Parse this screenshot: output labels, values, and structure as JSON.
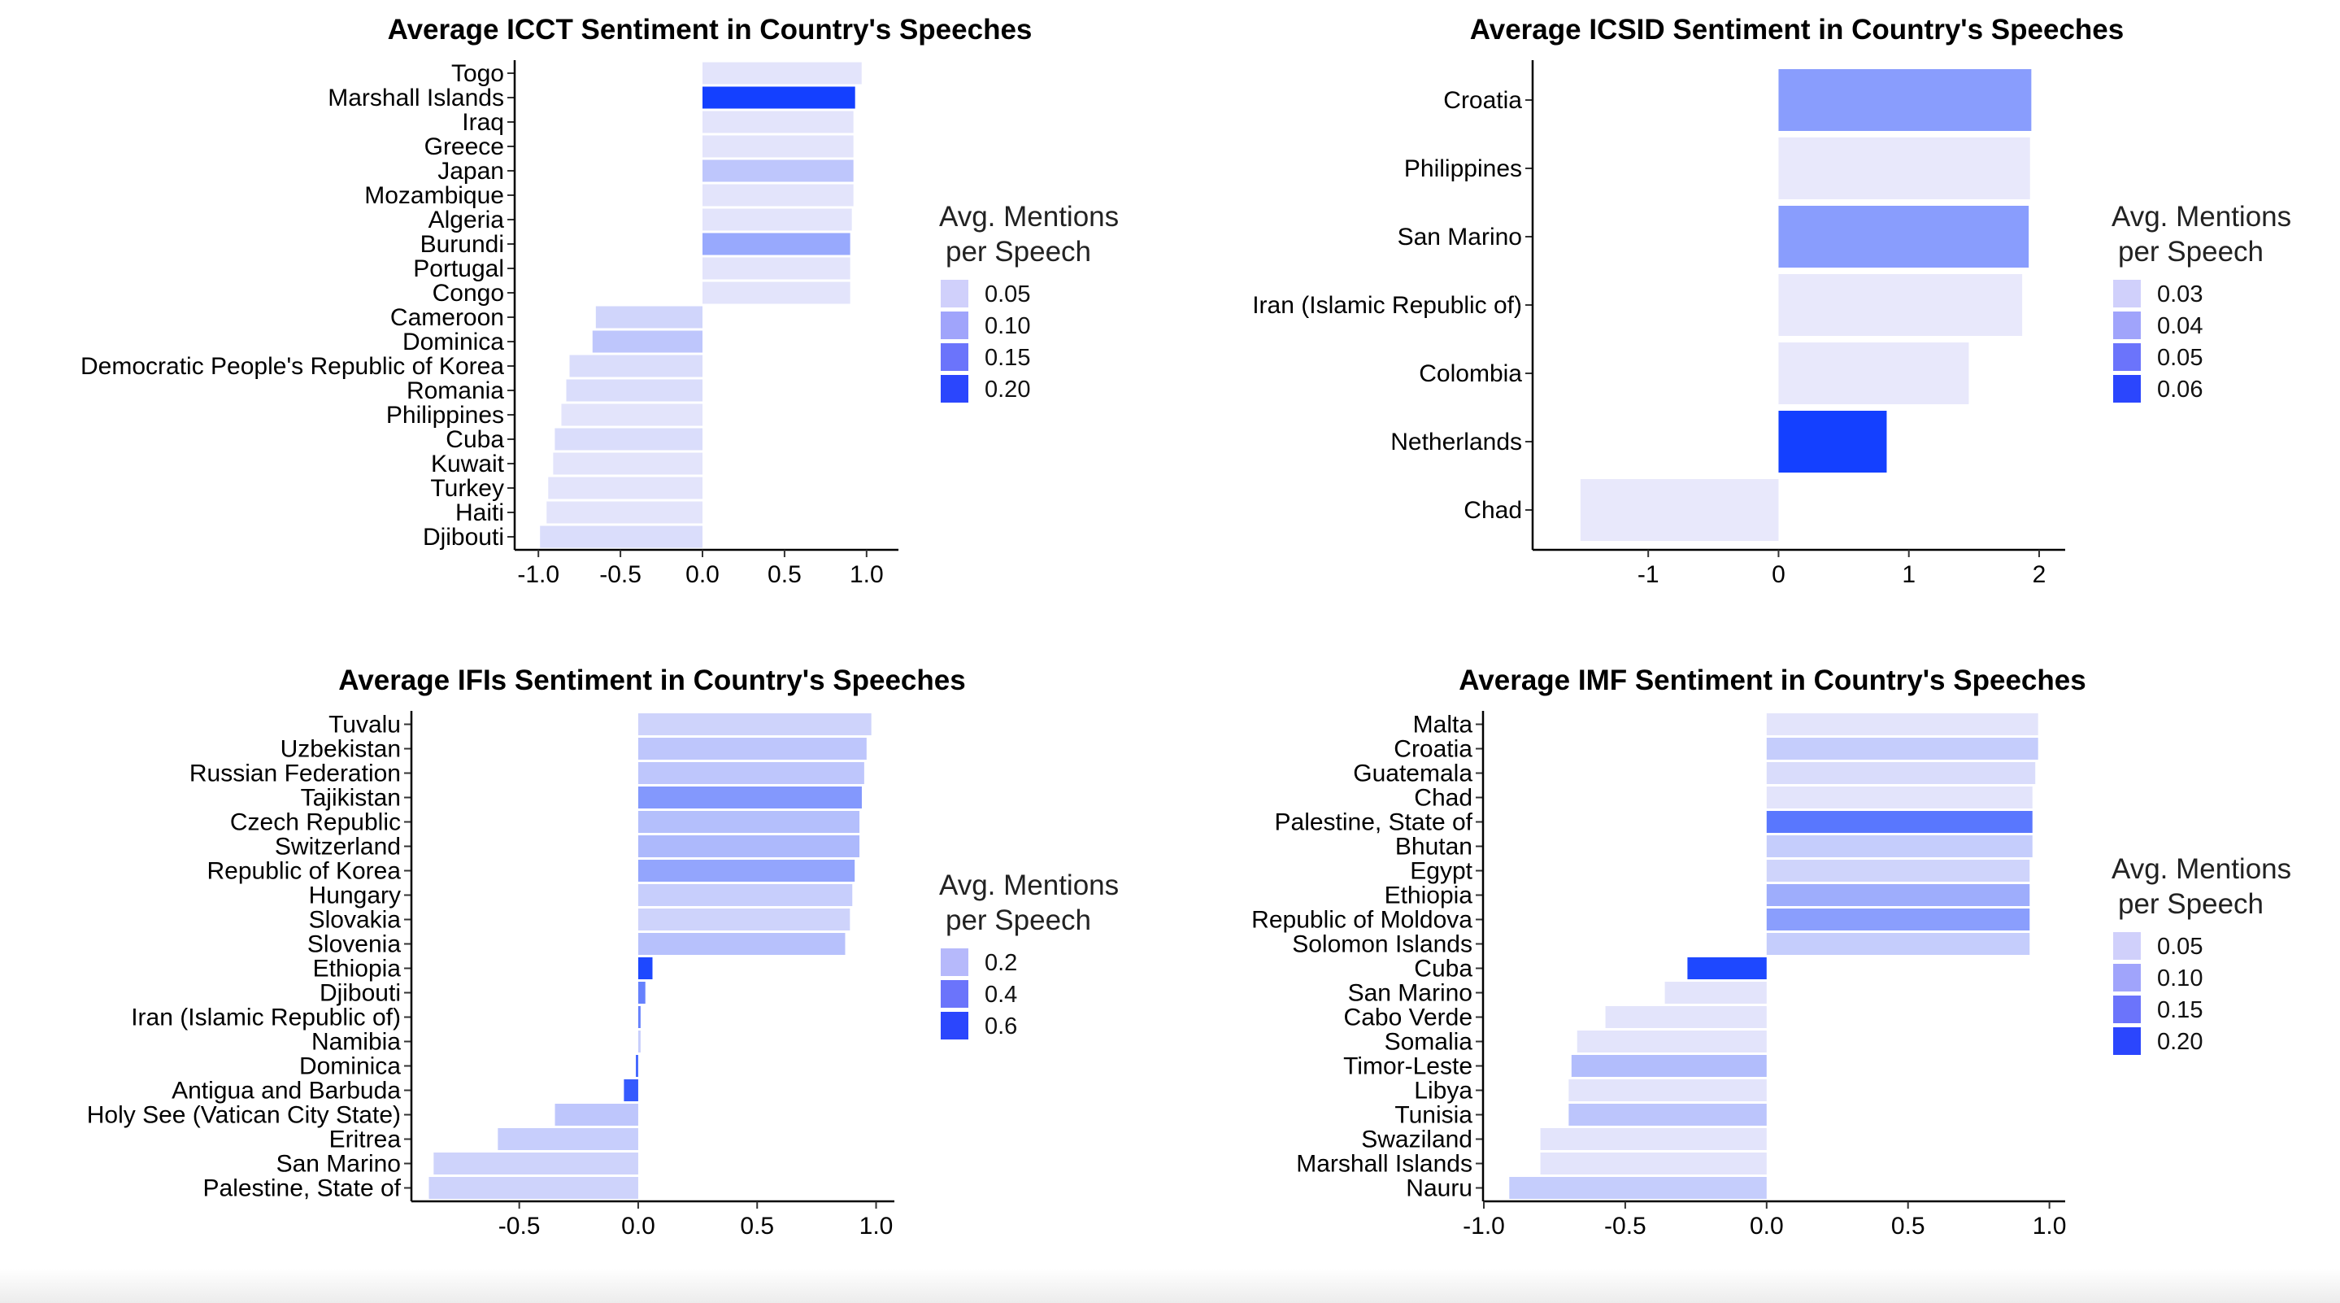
{
  "chart_data": [
    {
      "type": "bar",
      "orientation": "horizontal",
      "title": "Average ICCT Sentiment in Country's Speeches",
      "xlabel": "",
      "ylabel": "",
      "xlim": [
        -1.1,
        1.1
      ],
      "xticks": [
        -1.0,
        -0.5,
        0.0,
        0.5,
        1.0
      ],
      "xtick_labels": [
        "-1.0",
        "-0.5",
        "0.0",
        "0.5",
        "1.0"
      ],
      "grid": false,
      "categories": [
        "Togo",
        "Marshall Islands",
        "Iraq",
        "Greece",
        "Japan",
        "Mozambique",
        "Algeria",
        "Burundi",
        "Portugal",
        "Congo",
        "Cameroon",
        "Dominica",
        "Democratic People's Republic of Korea",
        "Romania",
        "Philippines",
        "Cuba",
        "Kuwait",
        "Turkey",
        "Haiti",
        "Djibouti"
      ],
      "values": [
        0.97,
        0.93,
        0.92,
        0.92,
        0.92,
        0.92,
        0.91,
        0.9,
        0.9,
        0.9,
        -0.65,
        -0.67,
        -0.81,
        -0.83,
        -0.86,
        -0.9,
        -0.91,
        -0.94,
        -0.95,
        -0.99
      ],
      "mentions": [
        0.03,
        0.25,
        0.03,
        0.03,
        0.07,
        0.03,
        0.03,
        0.11,
        0.03,
        0.03,
        0.05,
        0.07,
        0.04,
        0.04,
        0.03,
        0.04,
        0.03,
        0.03,
        0.03,
        0.04
      ],
      "legend": {
        "title": [
          "Avg. Mentions",
          "per Speech"
        ],
        "position": "right",
        "entries": [
          "0.05",
          "0.10",
          "0.15",
          "0.20"
        ],
        "colors": [
          "#d0d0fb",
          "#a0a4fb",
          "#6b74fb",
          "#2b46fd"
        ]
      }
    },
    {
      "type": "bar",
      "orientation": "horizontal",
      "title": "Average ICSID Sentiment in Country's Speeches",
      "xlabel": "",
      "ylabel": "",
      "xlim": [
        -1.7,
        2.1
      ],
      "xticks": [
        -1,
        0,
        1,
        2
      ],
      "xtick_labels": [
        "-1",
        "0",
        "1",
        "2"
      ],
      "grid": false,
      "categories": [
        "Croatia",
        "Philippines",
        "San Marino",
        "Iran (Islamic Republic of)",
        "Colombia",
        "Netherlands",
        "Chad"
      ],
      "values": [
        1.94,
        1.93,
        1.92,
        1.87,
        1.46,
        0.83,
        -1.52
      ],
      "mentions": [
        0.042,
        0.025,
        0.042,
        0.025,
        0.025,
        0.063,
        0.025
      ],
      "legend": {
        "title": [
          "Avg. Mentions",
          "per Speech"
        ],
        "position": "right",
        "entries": [
          "0.03",
          "0.04",
          "0.05",
          "0.06"
        ],
        "colors": [
          "#d0d0fb",
          "#a0a4fb",
          "#6b74fb",
          "#2b46fd"
        ]
      }
    },
    {
      "type": "bar",
      "orientation": "horizontal",
      "title": "Average IFIs Sentiment in Country's Speeches",
      "xlabel": "",
      "ylabel": "",
      "xlim": [
        -0.95,
        1.07
      ],
      "xticks": [
        -0.5,
        0.0,
        0.5,
        1.0
      ],
      "xtick_labels": [
        "-0.5",
        "0.0",
        "0.5",
        "1.0"
      ],
      "grid": false,
      "categories": [
        "Tuvalu",
        "Uzbekistan",
        "Russian Federation",
        "Tajikistan",
        "Czech Republic",
        "Switzerland",
        "Republic of Korea",
        "Hungary",
        "Slovakia",
        "Slovenia",
        "Ethiopia",
        "Djibouti",
        "Iran (Islamic Republic of)",
        "Namibia",
        "Dominica",
        "Antigua and Barbuda",
        "Holy See (Vatican City State)",
        "Eritrea",
        "San Marino",
        "Palestine, State of"
      ],
      "values": [
        0.98,
        0.96,
        0.95,
        0.94,
        0.93,
        0.93,
        0.91,
        0.9,
        0.89,
        0.87,
        0.06,
        0.03,
        0.01,
        0.01,
        -0.01,
        -0.06,
        -0.35,
        -0.59,
        -0.86,
        -0.88
      ],
      "mentions": [
        0.08,
        0.13,
        0.13,
        0.31,
        0.16,
        0.18,
        0.26,
        0.1,
        0.08,
        0.15,
        0.62,
        0.4,
        0.4,
        0.1,
        0.5,
        0.55,
        0.13,
        0.1,
        0.08,
        0.08
      ],
      "legend": {
        "title": [
          "Avg. Mentions",
          "per Speech"
        ],
        "position": "right",
        "entries": [
          "0.2",
          "0.4",
          "0.6"
        ],
        "colors": [
          "#b6b9fb",
          "#6b74fb",
          "#2b46fd"
        ]
      }
    },
    {
      "type": "bar",
      "orientation": "horizontal",
      "title": "Average IMF Sentiment in Country's Speeches",
      "xlabel": "",
      "ylabel": "",
      "xlim": [
        -1.0,
        1.05
      ],
      "xticks": [
        -1.0,
        -0.5,
        0.0,
        0.5,
        1.0
      ],
      "xtick_labels": [
        "-1.0",
        "-0.5",
        "0.0",
        "0.5",
        "1.0"
      ],
      "grid": false,
      "categories": [
        "Malta",
        "Croatia",
        "Guatemala",
        "Chad",
        "Palestine, State of",
        "Bhutan",
        "Egypt",
        "Ethiopia",
        "Republic of Moldova",
        "Solomon Islands",
        "Cuba",
        "San Marino",
        "Cabo Verde",
        "Somalia",
        "Timor-Leste",
        "Libya",
        "Tunisia",
        "Swaziland",
        "Marshall Islands",
        "Nauru"
      ],
      "values": [
        0.96,
        0.96,
        0.95,
        0.94,
        0.94,
        0.94,
        0.93,
        0.93,
        0.93,
        0.93,
        -0.28,
        -0.36,
        -0.57,
        -0.67,
        -0.69,
        -0.7,
        -0.7,
        -0.8,
        -0.8,
        -0.91
      ],
      "mentions": [
        0.03,
        0.06,
        0.04,
        0.03,
        0.17,
        0.06,
        0.05,
        0.1,
        0.12,
        0.06,
        0.23,
        0.03,
        0.03,
        0.03,
        0.08,
        0.03,
        0.07,
        0.03,
        0.03,
        0.06
      ],
      "legend": {
        "title": [
          "Avg. Mentions",
          "per Speech"
        ],
        "position": "right",
        "entries": [
          "0.05",
          "0.10",
          "0.15",
          "0.20"
        ],
        "colors": [
          "#d0d0fb",
          "#a0a4fb",
          "#6b74fb",
          "#2b46fd"
        ]
      }
    }
  ]
}
